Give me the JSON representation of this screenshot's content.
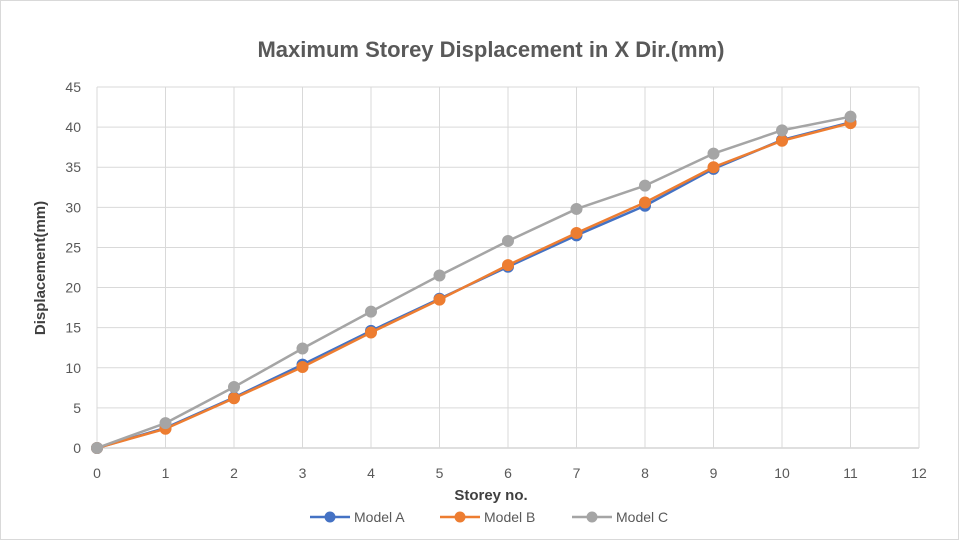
{
  "chart_data": {
    "type": "line",
    "title": "Maximum Storey Displacement in X Dir.(mm)",
    "xlabel": "Storey no.",
    "ylabel": "Displacement(mm)",
    "xlim": [
      0,
      12
    ],
    "ylim": [
      0,
      45
    ],
    "x_ticks": [
      0,
      1,
      2,
      3,
      4,
      5,
      6,
      7,
      8,
      9,
      10,
      11,
      12
    ],
    "y_ticks": [
      0,
      5,
      10,
      15,
      20,
      25,
      30,
      35,
      40,
      45
    ],
    "grid": true,
    "legend_position": "bottom",
    "x": [
      0,
      1,
      2,
      3,
      4,
      5,
      6,
      7,
      8,
      9,
      10,
      11
    ],
    "series": [
      {
        "name": "Model A",
        "color": "#4472c4",
        "values": [
          0,
          2.5,
          6.3,
          10.4,
          14.6,
          18.6,
          22.6,
          26.5,
          30.2,
          34.8,
          38.4,
          40.6
        ]
      },
      {
        "name": "Model B",
        "color": "#ed7d31",
        "values": [
          0,
          2.4,
          6.2,
          10.1,
          14.4,
          18.5,
          22.8,
          26.8,
          30.6,
          35.0,
          38.3,
          40.5
        ]
      },
      {
        "name": "Model C",
        "color": "#a5a5a5",
        "values": [
          0,
          3.1,
          7.6,
          12.4,
          17.0,
          21.5,
          25.8,
          29.8,
          32.7,
          36.7,
          39.6,
          41.3
        ]
      }
    ]
  }
}
